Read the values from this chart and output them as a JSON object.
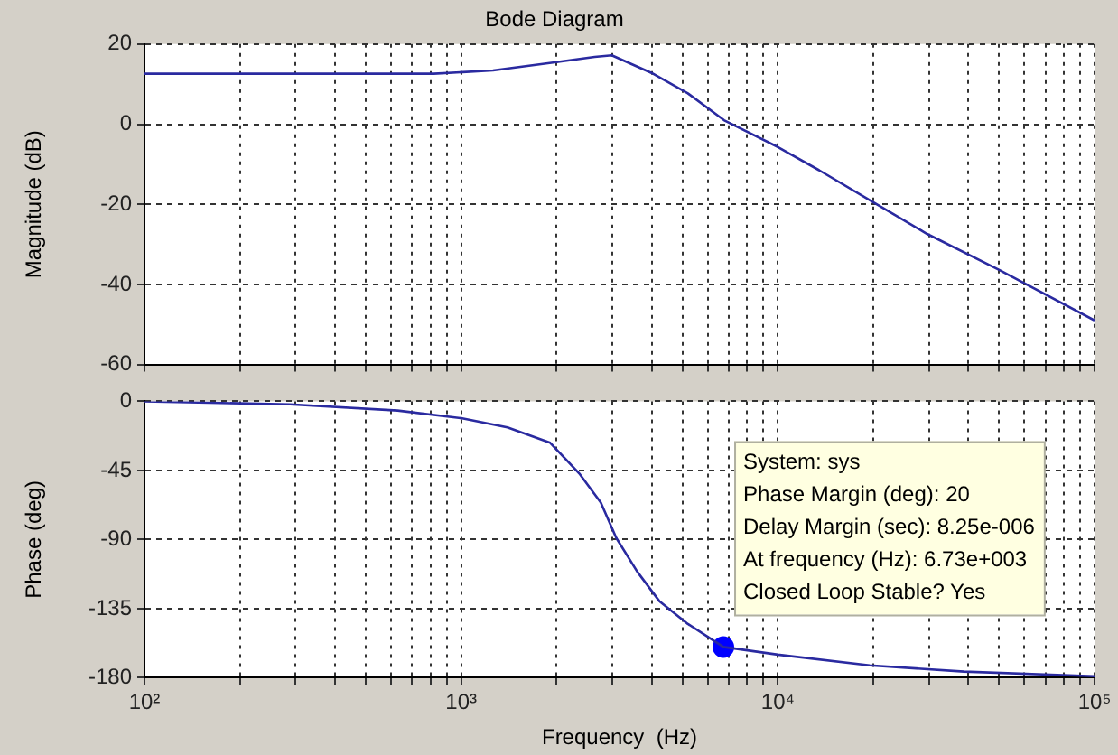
{
  "chart_data": [
    {
      "type": "line",
      "title": "Bode Diagram",
      "ylabel": "Magnitude (dB)",
      "tick_labels": "y",
      "grid": true,
      "line_style": "solid",
      "log": "x",
      "xlim": [
        100,
        100000
      ],
      "ylim": [
        -60,
        20
      ],
      "yticks": [
        -60,
        -40,
        -20,
        0,
        20
      ],
      "xticks": [
        {
          "value": 100,
          "label": null
        },
        {
          "value": 200,
          "label": null
        },
        {
          "value": 300,
          "label": null
        },
        {
          "value": 400,
          "label": null
        },
        {
          "value": 500,
          "label": null
        },
        {
          "value": 600,
          "label": null
        },
        {
          "value": 700,
          "label": null
        },
        {
          "value": 800,
          "label": null
        },
        {
          "value": 900,
          "label": null
        },
        {
          "value": 1000,
          "label": null
        },
        {
          "value": 2000,
          "label": null
        },
        {
          "value": 3000,
          "label": null
        },
        {
          "value": 4000,
          "label": null
        },
        {
          "value": 5000,
          "label": null
        },
        {
          "value": 6000,
          "label": null
        },
        {
          "value": 7000,
          "label": null
        },
        {
          "value": 8000,
          "label": null
        },
        {
          "value": 9000,
          "label": null
        },
        {
          "value": 10000,
          "label": null
        },
        {
          "value": 20000,
          "label": null
        },
        {
          "value": 30000,
          "label": null
        },
        {
          "value": 40000,
          "label": null
        },
        {
          "value": 50000,
          "label": null
        },
        {
          "value": 60000,
          "label": null
        },
        {
          "value": 70000,
          "label": null
        },
        {
          "value": 80000,
          "label": null
        },
        {
          "value": 90000,
          "label": null
        },
        {
          "value": 100000,
          "label": null
        }
      ],
      "series": [
        {
          "type": "line",
          "color": "#2a2aa0",
          "marker": "none",
          "x": [
            100,
            820,
            1260,
            2000,
            2640,
            2990,
            3990,
            5200,
            6760,
            10000,
            13500,
            20000,
            29600,
            50000,
            100000
          ],
          "values": [
            12.6,
            12.6,
            13.4,
            15.5,
            16.8,
            17.2,
            12.8,
            7.7,
            1.0,
            -5.7,
            -11.5,
            -19.5,
            -27.4,
            -36.4,
            -49
          ]
        }
      ]
    },
    {
      "type": "line",
      "xlabel": "Frequency  (Hz)",
      "ylabel": "Phase (deg)",
      "grid": true,
      "line_style": "solid",
      "log": "x",
      "xlim": [
        100,
        100000
      ],
      "ylim": [
        -180,
        0
      ],
      "yticks": [
        -180,
        -135,
        -90,
        -45,
        0
      ],
      "xticks": [
        {
          "value": 100,
          "label": "10²"
        },
        {
          "value": 200,
          "label": null
        },
        {
          "value": 300,
          "label": null
        },
        {
          "value": 400,
          "label": null
        },
        {
          "value": 500,
          "label": null
        },
        {
          "value": 600,
          "label": null
        },
        {
          "value": 700,
          "label": null
        },
        {
          "value": 800,
          "label": null
        },
        {
          "value": 900,
          "label": null
        },
        {
          "value": 1000,
          "label": "10³"
        },
        {
          "value": 2000,
          "label": null
        },
        {
          "value": 3000,
          "label": null
        },
        {
          "value": 4000,
          "label": null
        },
        {
          "value": 5000,
          "label": null
        },
        {
          "value": 6000,
          "label": null
        },
        {
          "value": 7000,
          "label": null
        },
        {
          "value": 8000,
          "label": null
        },
        {
          "value": 9000,
          "label": null
        },
        {
          "value": 10000,
          "label": "10⁴"
        },
        {
          "value": 20000,
          "label": null
        },
        {
          "value": 30000,
          "label": null
        },
        {
          "value": 40000,
          "label": null
        },
        {
          "value": 50000,
          "label": null
        },
        {
          "value": 60000,
          "label": null
        },
        {
          "value": 70000,
          "label": null
        },
        {
          "value": 80000,
          "label": null
        },
        {
          "value": 90000,
          "label": null
        },
        {
          "value": 100000,
          "label": "10⁵"
        }
      ],
      "annotations": [
        "System: sys",
        "Phase Margin (deg): 20",
        "Delay Margin (sec): 8.25e-006",
        "At frequency (Hz): 6.73e+003",
        "Closed Loop Stable? Yes"
      ],
      "series": [
        {
          "type": "line",
          "color": "#2a2aa0",
          "marker": "none",
          "x": [
            100,
            288,
            630,
            1000,
            1400,
            1910,
            2360,
            2760,
            3090,
            3600,
            4220,
            5200,
            6730,
            10000,
            19500,
            38700,
            100000
          ],
          "values": [
            0,
            -2,
            -6,
            -11,
            -17,
            -27,
            -47,
            -66,
            -89,
            -111,
            -130,
            -145,
            -160,
            -165,
            -172,
            -176,
            -179
          ]
        },
        {
          "type": "scatter",
          "color": "#0000ff",
          "marker": "circle",
          "x": [
            6730
          ],
          "values": [
            -160
          ]
        }
      ]
    }
  ]
}
